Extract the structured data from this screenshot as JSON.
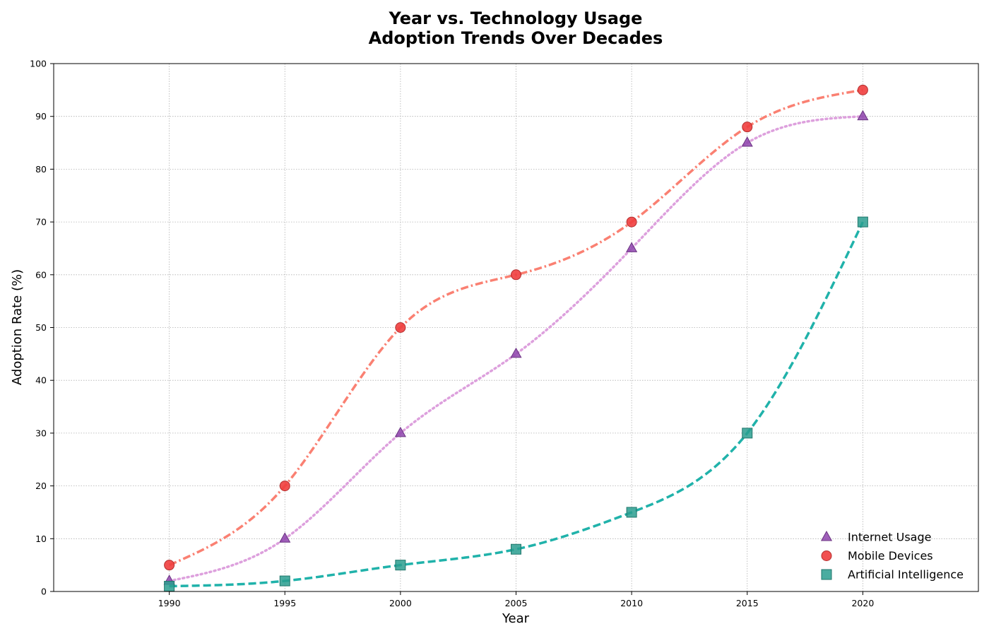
{
  "chart_data": {
    "type": "line",
    "title": "Year vs. Technology Usage",
    "subtitle": "Adoption Trends Over Decades",
    "xlabel": "Year",
    "ylabel": "Adoption Rate (%)",
    "x": [
      1990,
      1995,
      2000,
      2005,
      2010,
      2015,
      2020
    ],
    "xlim": [
      1985,
      2025
    ],
    "ylim": [
      0,
      100
    ],
    "xticks": [
      1990,
      1995,
      2000,
      2005,
      2010,
      2015,
      2020
    ],
    "yticks": [
      0,
      10,
      20,
      30,
      40,
      50,
      60,
      70,
      80,
      90,
      100
    ],
    "grid": true,
    "legend_position": "bottom-right",
    "series": [
      {
        "name": "Internet Usage",
        "values": [
          2,
          10,
          30,
          45,
          65,
          85,
          90
        ],
        "marker": "triangle",
        "marker_color": "#8e44ad",
        "line_color": "#dda0dd",
        "line_style": "dotted"
      },
      {
        "name": "Mobile Devices",
        "values": [
          5,
          20,
          50,
          60,
          70,
          88,
          95
        ],
        "marker": "circle",
        "marker_color": "#f03e3e",
        "line_color": "#fa8072",
        "line_style": "dashdot"
      },
      {
        "name": "Artificial Intelligence",
        "values": [
          1,
          2,
          5,
          8,
          15,
          30,
          70
        ],
        "marker": "square",
        "marker_color": "#2a9d8f",
        "line_color": "#20b2aa",
        "line_style": "dashed"
      }
    ]
  }
}
